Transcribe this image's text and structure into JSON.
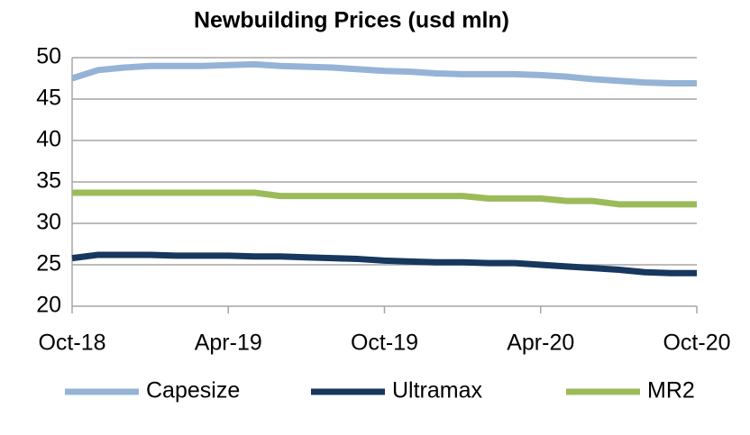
{
  "chart_data": {
    "type": "line",
    "title": "Newbuilding Prices (usd mln)",
    "categories": [
      "Oct-18",
      null,
      null,
      null,
      null,
      null,
      "Apr-19",
      null,
      null,
      null,
      null,
      null,
      "Oct-19",
      null,
      null,
      null,
      null,
      null,
      "Apr-20",
      null,
      null,
      null,
      null,
      null,
      "Oct-20"
    ],
    "series": [
      {
        "name": "Capesize",
        "color": "#95b3d7",
        "values": [
          47.5,
          48.5,
          48.8,
          49,
          49,
          49,
          49.1,
          49.2,
          49,
          48.9,
          48.8,
          48.6,
          48.4,
          48.3,
          48.1,
          48,
          48,
          48,
          47.9,
          47.7,
          47.4,
          47.2,
          47,
          46.9,
          46.9
        ]
      },
      {
        "name": "Ultramax",
        "color": "#17375e",
        "values": [
          25.8,
          26.2,
          26.2,
          26.2,
          26.1,
          26.1,
          26.1,
          26,
          26,
          25.9,
          25.8,
          25.7,
          25.5,
          25.4,
          25.3,
          25.3,
          25.2,
          25.2,
          25,
          24.8,
          24.6,
          24.4,
          24.1,
          24,
          24
        ]
      },
      {
        "name": "MR2",
        "color": "#9bbb59",
        "values": [
          33.7,
          33.7,
          33.7,
          33.7,
          33.7,
          33.7,
          33.7,
          33.7,
          33.3,
          33.3,
          33.3,
          33.3,
          33.3,
          33.3,
          33.3,
          33.3,
          33,
          33,
          33,
          32.7,
          32.7,
          32.3,
          32.3,
          32.3,
          32.3
        ]
      }
    ],
    "ylim": [
      20,
      50
    ],
    "yticks": [
      20,
      25,
      30,
      35,
      40,
      45,
      50
    ],
    "grid": true
  }
}
